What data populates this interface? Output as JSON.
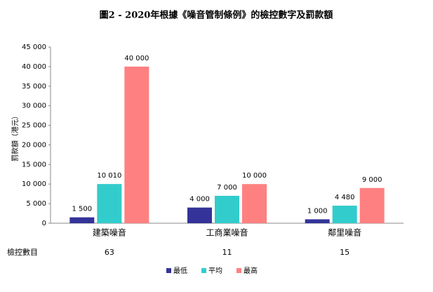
{
  "chart_data": {
    "type": "bar",
    "title": "圖2 - 2020年根據《噪音管制條例》的檢控數字及罰款額",
    "y_label": "罰款額（港元）",
    "categories": [
      "建築噪音",
      "工商業噪音",
      "鄰里噪音"
    ],
    "series": [
      {
        "name": "最低",
        "color": "#333399",
        "values": [
          1500,
          4000,
          1000
        ],
        "value_labels": [
          "1 500",
          "4 000",
          "1 000"
        ]
      },
      {
        "name": "平均",
        "color": "#33cccc",
        "values": [
          10010,
          7000,
          4480
        ],
        "value_labels": [
          "10 010",
          "7 000",
          "4 480"
        ]
      },
      {
        "name": "最高",
        "color": "#ff8080",
        "values": [
          40000,
          10000,
          9000
        ],
        "value_labels": [
          "40 000",
          "10 000",
          "9 000"
        ]
      }
    ],
    "ylim": [
      0,
      45000
    ],
    "yticks": [
      0,
      {
        "value": 5000,
        "label": "5 000"
      },
      {
        "value": 10000,
        "label": "10 000"
      },
      {
        "value": 15000,
        "label": "15 000"
      },
      {
        "value": 20000,
        "label": "20 000"
      },
      {
        "value": 25000,
        "label": "25 000"
      },
      {
        "value": 30000,
        "label": "30 000"
      },
      {
        "value": 35000,
        "label": "35 000"
      },
      {
        "value": 40000,
        "label": "40 000"
      },
      {
        "value": 45000,
        "label": "45 000"
      }
    ],
    "grid": false,
    "legend": "bottom",
    "footer_row": {
      "label": "檢控數目",
      "values": [
        63,
        11,
        15
      ]
    }
  }
}
